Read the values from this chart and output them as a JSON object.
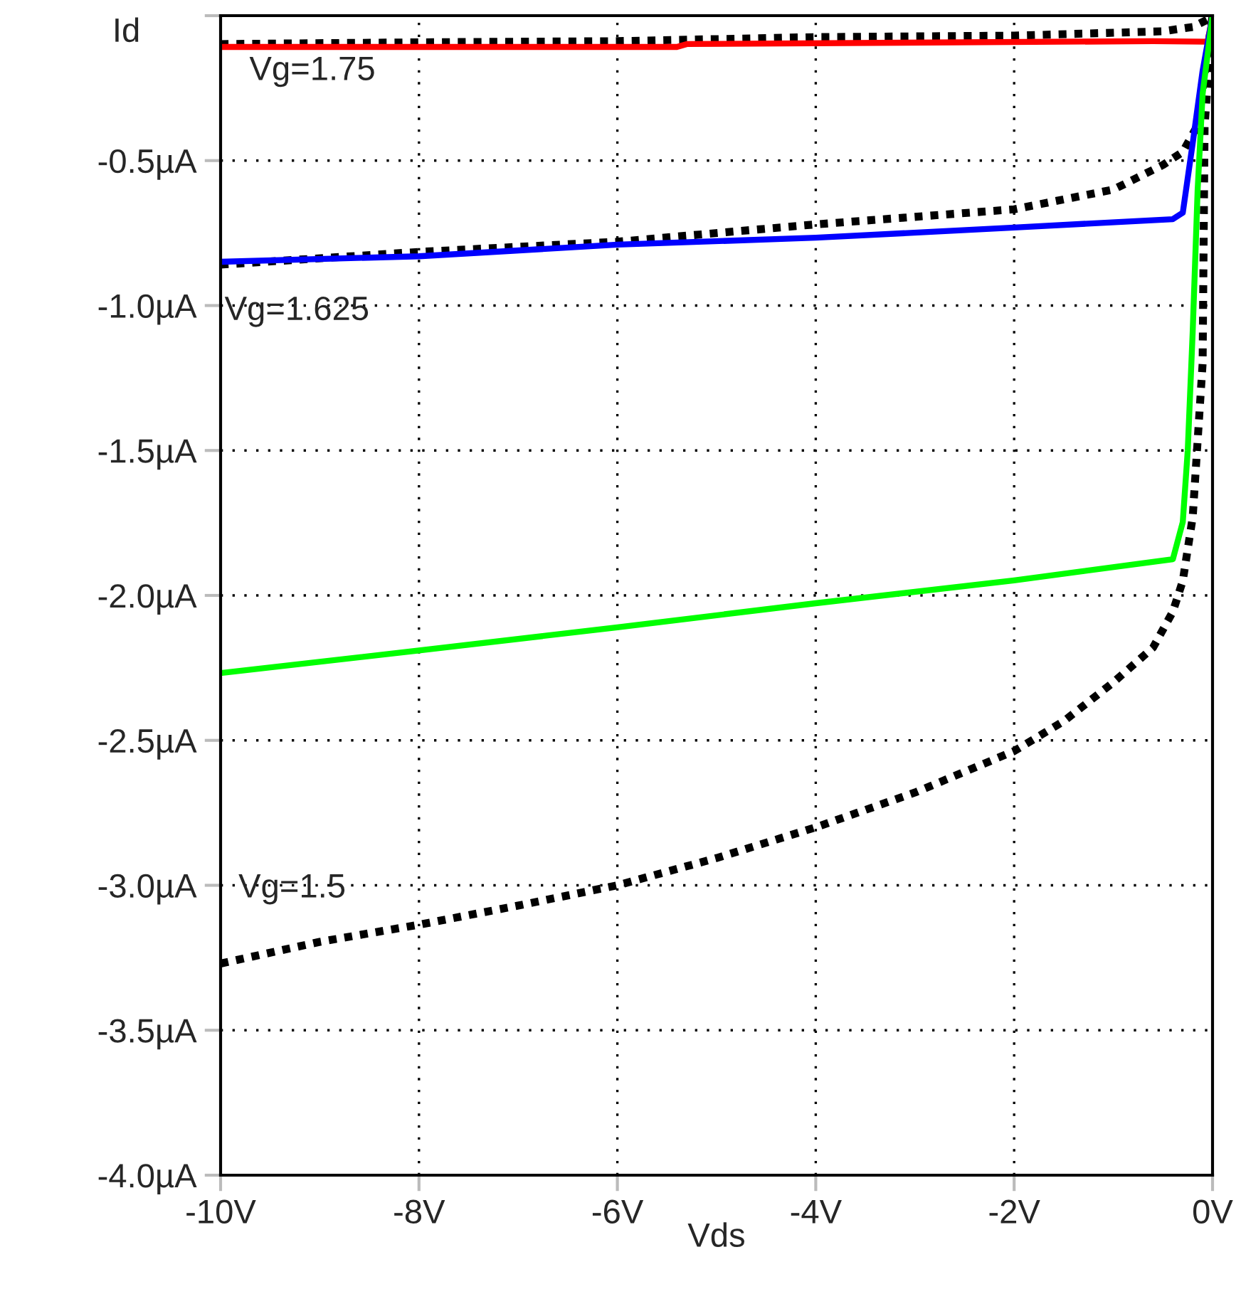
{
  "chart_data": {
    "type": "line",
    "xlabel": "Vds",
    "ylabel": "Id",
    "xlim": [
      -10,
      0
    ],
    "ylim": [
      -4.0,
      0.0
    ],
    "xticks": [
      {
        "value": -10,
        "label": "-10V"
      },
      {
        "value": -8,
        "label": "-8V"
      },
      {
        "value": -6,
        "label": "-6V"
      },
      {
        "value": -4,
        "label": "-4V"
      },
      {
        "value": -2,
        "label": "-2V"
      },
      {
        "value": 0,
        "label": "0V"
      }
    ],
    "yticks": [
      {
        "value": 0,
        "label": null
      },
      {
        "value": -0.5,
        "label": "-0.5µA"
      },
      {
        "value": -1.0,
        "label": "-1.0µA"
      },
      {
        "value": -1.5,
        "label": "-1.5µA"
      },
      {
        "value": -2.0,
        "label": "-2.0µA"
      },
      {
        "value": -2.5,
        "label": "-2.5µA"
      },
      {
        "value": -3.0,
        "label": "-3.0µA"
      },
      {
        "value": -3.5,
        "label": "-3.5µA"
      },
      {
        "value": -4.0,
        "label": "-4.0µA"
      }
    ],
    "grid": true,
    "legend": false,
    "series": [
      {
        "color": "#000000",
        "line_style": "dotted",
        "x": [
          -10,
          -8,
          -6,
          -4,
          -2,
          -0.5,
          -0.2,
          0
        ],
        "values": [
          -0.098,
          -0.092,
          -0.088,
          -0.074,
          -0.069,
          -0.054,
          -0.039,
          -0.005
        ]
      },
      {
        "color": "#000000",
        "line_style": "dotted",
        "x": [
          -10,
          -8,
          -6,
          -4,
          -2,
          -1,
          -0.5,
          -0.3,
          -0.15,
          0
        ],
        "values": [
          -0.859,
          -0.815,
          -0.78,
          -0.72,
          -0.668,
          -0.6,
          -0.515,
          -0.47,
          -0.378,
          0
        ]
      },
      {
        "color": "#000000",
        "line_style": "dotted",
        "x": [
          -10,
          -9,
          -8,
          -7,
          -6,
          -5,
          -4,
          -3,
          -2,
          -1.5,
          -1,
          -0.6,
          -0.4,
          -0.3,
          -0.2,
          -0.1,
          -0.08,
          0
        ],
        "values": [
          -3.27,
          -3.195,
          -3.136,
          -3.07,
          -3.0,
          -2.906,
          -2.8,
          -2.68,
          -2.537,
          -2.434,
          -2.3,
          -2.18,
          -2.056,
          -1.95,
          -1.73,
          -1.2,
          -0.38,
          0
        ]
      },
      {
        "color": "#ff0000",
        "line_style": "solid",
        "x": [
          -10,
          -5.4,
          -5.3,
          -0.6,
          -0.05,
          0
        ],
        "values": [
          -0.108,
          -0.108,
          -0.098,
          -0.088,
          -0.09,
          0
        ]
      },
      {
        "color": "#0000ff",
        "line_style": "solid",
        "x": [
          -10,
          -8,
          -6,
          -4,
          -2,
          -0.4,
          -0.3,
          -0.2,
          -0.1,
          0
        ],
        "values": [
          -0.849,
          -0.83,
          -0.79,
          -0.766,
          -0.731,
          -0.702,
          -0.68,
          -0.44,
          -0.19,
          0
        ]
      },
      {
        "color": "#00ff00",
        "line_style": "solid",
        "x": [
          -10,
          -8,
          -6,
          -4,
          -2,
          -0.4,
          -0.3,
          -0.25,
          -0.2,
          -0.15,
          -0.1,
          0
        ],
        "values": [
          -2.268,
          -2.19,
          -2.11,
          -2.027,
          -1.948,
          -1.875,
          -1.747,
          -1.5,
          -1.09,
          -0.6,
          -0.27,
          0
        ]
      }
    ],
    "annotations": [
      "Vg=1.75",
      "Vg=1.625",
      "Vg=1.5"
    ]
  }
}
